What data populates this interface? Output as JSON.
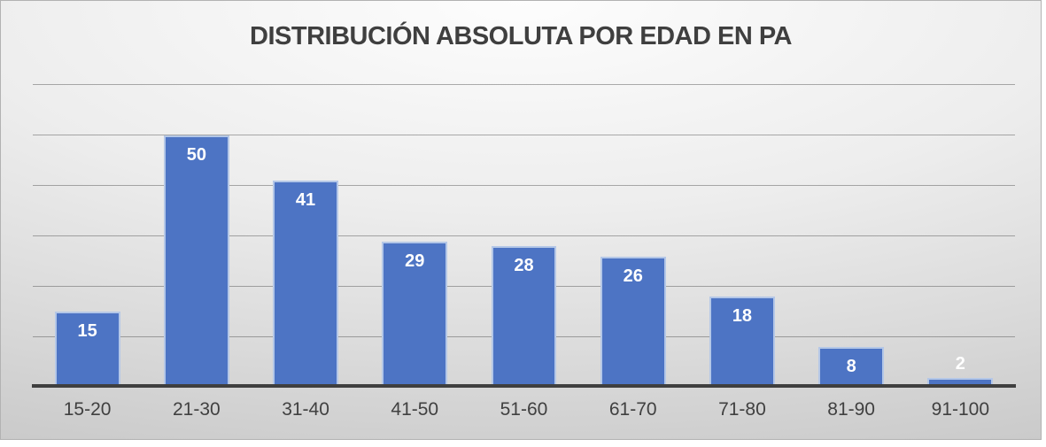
{
  "chart_data": {
    "type": "bar",
    "title": "DISTRIBUCIÓN ABSOLUTA POR EDAD EN PA",
    "categories": [
      "15-20",
      "21-30",
      "31-40",
      "41-50",
      "51-60",
      "61-70",
      "71-80",
      "81-90",
      "91-100"
    ],
    "values": [
      15,
      50,
      41,
      29,
      28,
      26,
      18,
      8,
      2
    ],
    "xlabel": "",
    "ylabel": "",
    "ylim": [
      0,
      60
    ],
    "grid_step": 10,
    "grid": true,
    "legend": false,
    "data_labels": "inside end (white bold); placed above bar when bar is too short",
    "y_axis_tick_labels_visible": false
  },
  "colors": {
    "bar_fill": "#4d74c4",
    "bar_border": "#b4c7e7",
    "value_label": "#ffffff",
    "axis_line": "#3f3f3f",
    "gridline": "rgba(64,64,64,0.42)",
    "title": "#3f3f3f",
    "tick_label": "#404040",
    "background_top": "#fdfdfd",
    "background_bottom": "#c7c7c7",
    "frame_border": "#b2b2b2"
  }
}
